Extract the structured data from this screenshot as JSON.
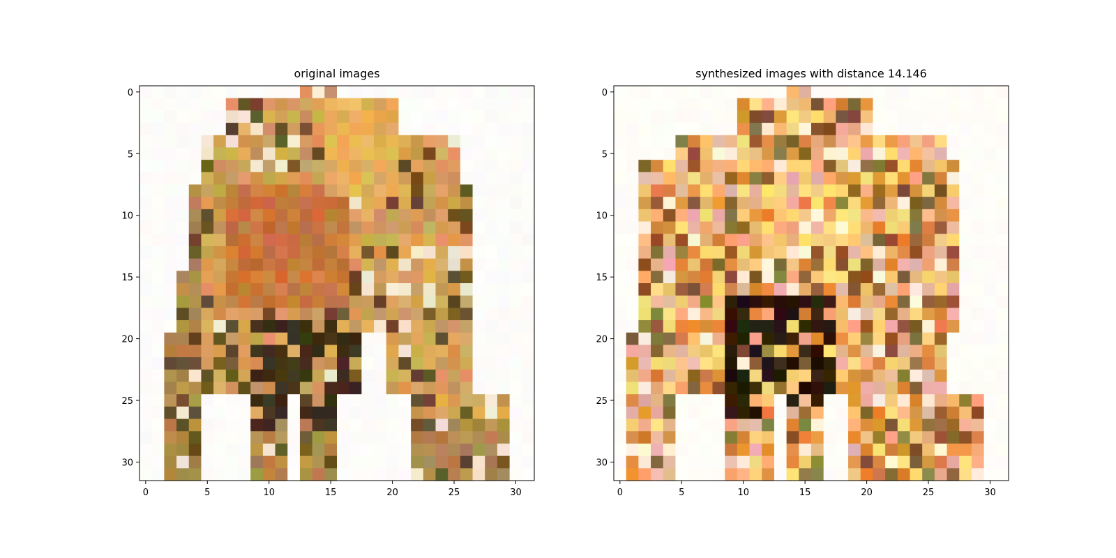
{
  "chart_data": [
    {
      "type": "heatmap",
      "title": "original images",
      "image_size": [
        32,
        32
      ],
      "x_ticks": [
        "0",
        "5",
        "10",
        "15",
        "20",
        "25",
        "30"
      ],
      "y_ticks": [
        "0",
        "5",
        "10",
        "15",
        "20",
        "25",
        "30"
      ],
      "xlim": [
        -0.5,
        31.5
      ],
      "ylim": [
        31.5,
        -0.5
      ],
      "colors": {
        "background": "#fdfcfa",
        "outline": "#b08a4e",
        "tan": "#d4a15a",
        "gold": "#e3b25a",
        "orange": "#c9783f",
        "dark": "#3f2f1a",
        "shadow": "#6a5028",
        "light": "#f1e6cf"
      }
    },
    {
      "type": "heatmap",
      "title": "synthesized images with distance 14.146",
      "image_size": [
        32,
        32
      ],
      "x_ticks": [
        "0",
        "5",
        "10",
        "15",
        "20",
        "25",
        "30"
      ],
      "y_ticks": [
        "0",
        "5",
        "10",
        "15",
        "20",
        "25",
        "30"
      ],
      "xlim": [
        -0.5,
        31.5
      ],
      "ylim": [
        31.5,
        -0.5
      ],
      "colors": {
        "background": "#fffdf8",
        "peach": "#f6b27a",
        "yellow": "#fbd77a",
        "orange": "#e08a3c",
        "brown": "#8a5a2e",
        "dark": "#2c1b0a",
        "pink": "#e9b3a7",
        "olive": "#8d7a3a",
        "light": "#fff1d9"
      }
    }
  ]
}
